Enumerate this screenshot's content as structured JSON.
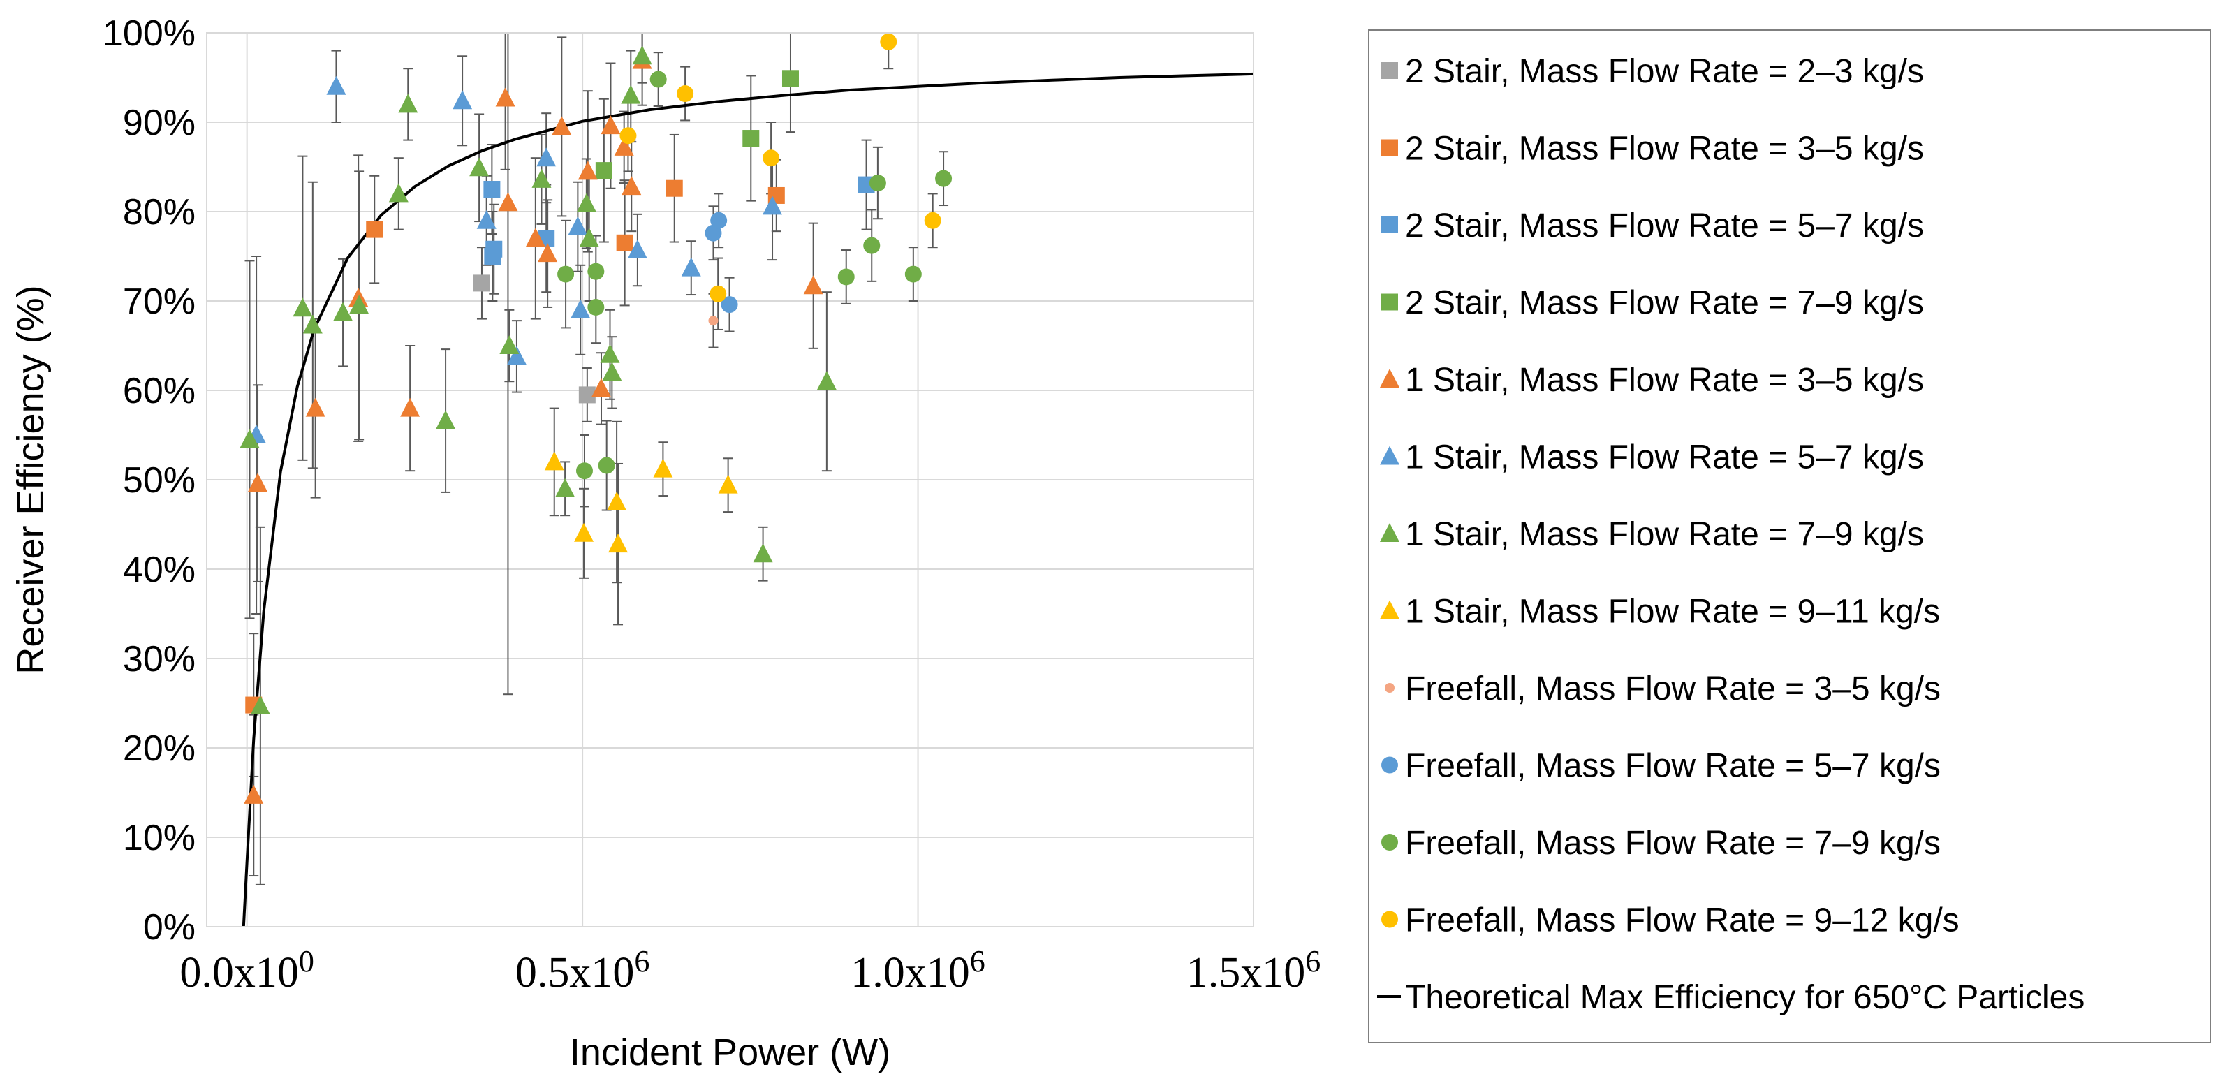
{
  "chart_data": {
    "type": "scatter",
    "xlabel": "Incident Power (W)",
    "ylabel": "Receiver Efficiency (%)",
    "xlim": [
      -60000,
      1500000
    ],
    "ylim": [
      0,
      100
    ],
    "x_ticks": [
      {
        "value": 0,
        "mant": "0.0x10",
        "exp": "0"
      },
      {
        "value": 500000,
        "mant": "0.5x10",
        "exp": "6"
      },
      {
        "value": 1000000,
        "mant": "1.0x10",
        "exp": "6"
      },
      {
        "value": 1500000,
        "mant": "1.5x10",
        "exp": "6"
      }
    ],
    "y_ticks": [
      {
        "value": 0,
        "label": "0%"
      },
      {
        "value": 10,
        "label": "10%"
      },
      {
        "value": 20,
        "label": "20%"
      },
      {
        "value": 30,
        "label": "30%"
      },
      {
        "value": 40,
        "label": "40%"
      },
      {
        "value": 50,
        "label": "50%"
      },
      {
        "value": 60,
        "label": "60%"
      },
      {
        "value": 70,
        "label": "70%"
      },
      {
        "value": 80,
        "label": "80%"
      },
      {
        "value": 90,
        "label": "90%"
      },
      {
        "value": 100,
        "label": "100%"
      }
    ],
    "grid": true,
    "legend_position": "right",
    "colors": {
      "gray": "#a5a5a5",
      "orange": "#ed7d31",
      "blue": "#5b9bd5",
      "green": "#70ad47",
      "yellow": "#ffc000",
      "salmon": "#f4a582",
      "line": "#000000"
    },
    "series": [
      {
        "name": "2 Stair, Mass Flow Rate = 2–3 kg/s",
        "marker": "square",
        "color": "#a5a5a5",
        "points": [
          {
            "x": 350000,
            "y": 72,
            "err": 4
          },
          {
            "x": 507000,
            "y": 59.5,
            "err": 3
          }
        ]
      },
      {
        "name": "2 Stair, Mass Flow Rate = 3–5 kg/s",
        "marker": "square",
        "color": "#ed7d31",
        "points": [
          {
            "x": 10000,
            "y": 24.8,
            "err": 8
          },
          {
            "x": 190000,
            "y": 78,
            "err": 6
          },
          {
            "x": 563000,
            "y": 76.5,
            "err": 7
          },
          {
            "x": 637000,
            "y": 82.6,
            "err": 6
          },
          {
            "x": 789000,
            "y": 81.8,
            "err": 4
          }
        ]
      },
      {
        "name": "2 Stair, Mass Flow Rate = 5–7 kg/s",
        "marker": "square",
        "color": "#5b9bd5",
        "points": [
          {
            "x": 365000,
            "y": 82.5,
            "err": 5
          },
          {
            "x": 368000,
            "y": 75.8,
            "err": 5
          },
          {
            "x": 366000,
            "y": 75,
            "err": 5
          },
          {
            "x": 446000,
            "y": 77,
            "err": 6
          },
          {
            "x": 923000,
            "y": 83,
            "err": 5
          }
        ]
      },
      {
        "name": "2 Stair, Mass Flow Rate = 7–9 kg/s",
        "marker": "square",
        "color": "#70ad47",
        "points": [
          {
            "x": 532000,
            "y": 84.6,
            "err": 8
          },
          {
            "x": 751000,
            "y": 88.2,
            "err": 7
          },
          {
            "x": 810000,
            "y": 94.9,
            "err": 6
          }
        ]
      },
      {
        "name": "1 Stair, Mass Flow Rate = 3–5 kg/s",
        "marker": "triangle",
        "color": "#ed7d31",
        "points": [
          {
            "x": 10000,
            "y": 14.7,
            "err": 9
          },
          {
            "x": 16000,
            "y": 49.6,
            "err": 11
          },
          {
            "x": 102000,
            "y": 58,
            "err": 10
          },
          {
            "x": 166000,
            "y": 70.3,
            "err": 16
          },
          {
            "x": 243000,
            "y": 58,
            "err": 7
          },
          {
            "x": 385000,
            "y": 92.7,
            "err": 8
          },
          {
            "x": 389000,
            "y": 81,
            "err": 55
          },
          {
            "x": 430000,
            "y": 77,
            "err": 9
          },
          {
            "x": 448000,
            "y": 75.3,
            "err": 6
          },
          {
            "x": 469000,
            "y": 89.5,
            "err": 10
          },
          {
            "x": 508000,
            "y": 84.5,
            "err": 9
          },
          {
            "x": 528000,
            "y": 60.2,
            "err": 4
          },
          {
            "x": 542000,
            "y": 89.6,
            "err": 7
          },
          {
            "x": 562000,
            "y": 87.2,
            "err": 4
          },
          {
            "x": 573000,
            "y": 82.8,
            "err": 5
          },
          {
            "x": 589000,
            "y": 96.9,
            "err": 5
          },
          {
            "x": 844000,
            "y": 71.7,
            "err": 7
          }
        ]
      },
      {
        "name": "1 Stair, Mass Flow Rate = 5–7 kg/s",
        "marker": "triangle",
        "color": "#5b9bd5",
        "points": [
          {
            "x": 14000,
            "y": 55,
            "err": 20
          },
          {
            "x": 133000,
            "y": 94,
            "err": 4
          },
          {
            "x": 321000,
            "y": 92.4,
            "err": 5
          },
          {
            "x": 357000,
            "y": 79,
            "err": 5
          },
          {
            "x": 402000,
            "y": 63.8,
            "err": 4
          },
          {
            "x": 446000,
            "y": 86,
            "err": 5
          },
          {
            "x": 493000,
            "y": 78.3,
            "err": 5
          },
          {
            "x": 497000,
            "y": 69,
            "err": 5
          },
          {
            "x": 582000,
            "y": 75.7,
            "err": 4
          },
          {
            "x": 662000,
            "y": 73.7,
            "err": 3
          },
          {
            "x": 783000,
            "y": 80.6,
            "err": 6
          }
        ]
      },
      {
        "name": "1 Stair, Mass Flow Rate = 7–9 kg/s",
        "marker": "triangle",
        "color": "#70ad47",
        "points": [
          {
            "x": 4000,
            "y": 54.5,
            "err": 20
          },
          {
            "x": 20000,
            "y": 24.7,
            "err": 20
          },
          {
            "x": 83000,
            "y": 69.2,
            "err": 17
          },
          {
            "x": 98000,
            "y": 67.3,
            "err": 16
          },
          {
            "x": 143000,
            "y": 68.7,
            "err": 6
          },
          {
            "x": 167000,
            "y": 69.5,
            "err": 15
          },
          {
            "x": 226000,
            "y": 82,
            "err": 4
          },
          {
            "x": 240000,
            "y": 92,
            "err": 4
          },
          {
            "x": 296000,
            "y": 56.6,
            "err": 8
          },
          {
            "x": 346000,
            "y": 84.9,
            "err": 6
          },
          {
            "x": 391000,
            "y": 65,
            "err": 4
          },
          {
            "x": 439000,
            "y": 83.6,
            "err": 5
          },
          {
            "x": 474000,
            "y": 49,
            "err": 3
          },
          {
            "x": 506000,
            "y": 80.9,
            "err": 5
          },
          {
            "x": 510000,
            "y": 77,
            "err": 7
          },
          {
            "x": 541000,
            "y": 64,
            "err": 5
          },
          {
            "x": 544000,
            "y": 62,
            "err": 4
          },
          {
            "x": 572000,
            "y": 93,
            "err": 5
          },
          {
            "x": 589000,
            "y": 97.4,
            "err": 3
          },
          {
            "x": 769000,
            "y": 41.7,
            "err": 3
          },
          {
            "x": 864000,
            "y": 61,
            "err": 10
          }
        ]
      },
      {
        "name": "1 Stair, Mass Flow Rate = 9–11 kg/s",
        "marker": "triangle",
        "color": "#ffc000",
        "points": [
          {
            "x": 458000,
            "y": 52,
            "err": 6
          },
          {
            "x": 502000,
            "y": 44,
            "err": 5
          },
          {
            "x": 551000,
            "y": 47.5,
            "err": 9
          },
          {
            "x": 553000,
            "y": 42.8,
            "err": 9
          },
          {
            "x": 620000,
            "y": 51.2,
            "err": 3
          },
          {
            "x": 717000,
            "y": 49.4,
            "err": 3
          }
        ]
      },
      {
        "name": "Freefall, Mass Flow Rate = 3–5 kg/s",
        "marker": "circle-small",
        "color": "#f4a582",
        "points": [
          {
            "x": 695000,
            "y": 67.8,
            "err": 3
          }
        ]
      },
      {
        "name": "Freefall, Mass Flow Rate = 5–7 kg/s",
        "marker": "circle",
        "color": "#5b9bd5",
        "points": [
          {
            "x": 695000,
            "y": 77.6,
            "err": 3
          },
          {
            "x": 703000,
            "y": 79,
            "err": 3
          },
          {
            "x": 719000,
            "y": 69.6,
            "err": 3
          }
        ]
      },
      {
        "name": "Freefall, Mass Flow Rate = 7–9 kg/s",
        "marker": "circle",
        "color": "#70ad47",
        "points": [
          {
            "x": 475000,
            "y": 73,
            "err": 6
          },
          {
            "x": 503000,
            "y": 51,
            "err": 4
          },
          {
            "x": 520000,
            "y": 73.3,
            "err": 4
          },
          {
            "x": 520000,
            "y": 69.3,
            "err": 4
          },
          {
            "x": 536000,
            "y": 51.6,
            "err": 5
          },
          {
            "x": 613000,
            "y": 94.8,
            "err": 3
          },
          {
            "x": 893000,
            "y": 72.7,
            "err": 3
          },
          {
            "x": 931000,
            "y": 76.2,
            "err": 4
          },
          {
            "x": 940000,
            "y": 83.2,
            "err": 4
          },
          {
            "x": 993000,
            "y": 73,
            "err": 3
          },
          {
            "x": 1038000,
            "y": 83.7,
            "err": 3
          }
        ]
      },
      {
        "name": "Freefall, Mass Flow Rate = 9–12 kg/s",
        "marker": "circle",
        "color": "#ffc000",
        "points": [
          {
            "x": 568000,
            "y": 88.5,
            "err": 4
          },
          {
            "x": 653000,
            "y": 93.2,
            "err": 3
          },
          {
            "x": 702000,
            "y": 70.8,
            "err": 4
          },
          {
            "x": 781000,
            "y": 86,
            "err": 4
          },
          {
            "x": 956000,
            "y": 99,
            "err": 3
          },
          {
            "x": 1022000,
            "y": 79,
            "err": 3
          }
        ]
      }
    ],
    "curve": {
      "name": "Theoretical Max Efficiency for 650°C Particles",
      "x": [
        -5000,
        0,
        10000,
        25000,
        50000,
        75000,
        100000,
        150000,
        200000,
        250000,
        300000,
        350000,
        400000,
        500000,
        600000,
        700000,
        800000,
        900000,
        1000000,
        1100000,
        1200000,
        1300000,
        1400000,
        1500000
      ],
      "y": [
        0,
        7.3,
        21,
        35.3,
        50.9,
        60.4,
        66.8,
        74.8,
        79.6,
        82.8,
        85.1,
        86.8,
        88.1,
        90.1,
        91.4,
        92.3,
        93.0,
        93.6,
        94.0,
        94.4,
        94.7,
        95.0,
        95.2,
        95.4
      ]
    }
  }
}
